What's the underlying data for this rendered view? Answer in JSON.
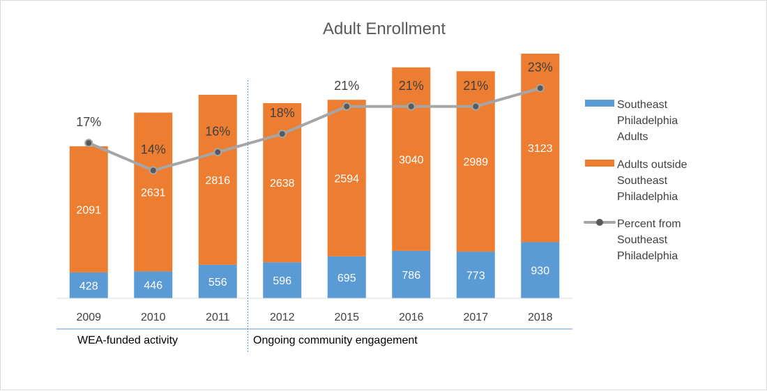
{
  "chart_data": {
    "type": "bar",
    "stacked": true,
    "title": "Adult Enrollment",
    "categories": [
      "2009",
      "2010",
      "2011",
      "2012",
      "2015",
      "2016",
      "2017",
      "2018"
    ],
    "series": [
      {
        "name": "Southeast Philadelphia Adults",
        "values": [
          428,
          446,
          556,
          596,
          695,
          786,
          773,
          930
        ],
        "color": "#5b9bd5"
      },
      {
        "name": "Adults outside Southeast Philadelphia",
        "values": [
          2091,
          2631,
          2816,
          2638,
          2594,
          3040,
          2989,
          3123
        ],
        "color": "#ed7d31"
      }
    ],
    "line_series": {
      "name": "Percent from Southeast Philadelphia",
      "values": [
        17,
        14,
        16,
        18,
        21,
        21,
        21,
        23
      ],
      "labels": [
        "17%",
        "14%",
        "16%",
        "18%",
        "21%",
        "21%",
        "21%",
        "23%"
      ],
      "color": "#a5a5a5",
      "ylim": [
        0,
        28
      ]
    },
    "ylim": [
      0,
      4700
    ],
    "grid": false,
    "legend_position": "right",
    "groups": [
      {
        "label": "WEA-funded activity",
        "categories": [
          "2009",
          "2010",
          "2011"
        ]
      },
      {
        "label": "Ongoing community engagement",
        "categories": [
          "2012",
          "2015",
          "2016",
          "2017",
          "2018"
        ]
      }
    ]
  }
}
